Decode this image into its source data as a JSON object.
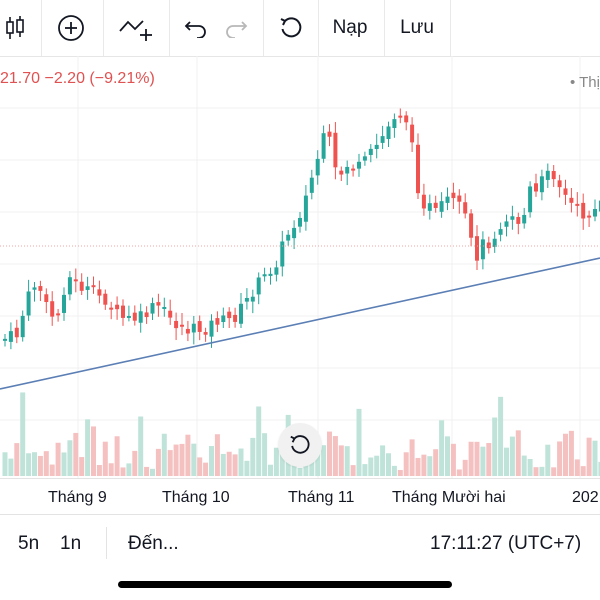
{
  "toolbar": {
    "candles_icon": "candlestick-icon",
    "add_icon": "plus-circle-icon",
    "indicator_icon": "indicator-add-icon",
    "undo_icon": "undo-icon",
    "redo_icon": "redo-icon",
    "refresh_icon": "refresh-icon",
    "load_label": "Nạp",
    "save_label": "Lưu"
  },
  "quote": {
    "price_text": "21.70 −2.20 (−9.21%)",
    "legend_text": "• Thị"
  },
  "colors": {
    "up": "#26a69a",
    "down": "#ef5350",
    "trendline": "#5b7fb5",
    "ref_line": "#f0a3a3"
  },
  "x_axis": {
    "labels": [
      "Tháng 9",
      "Tháng 10",
      "Tháng 11",
      "Tháng Mười hai",
      "202"
    ]
  },
  "bottom": {
    "range_5y": "5n",
    "range_1y": "1n",
    "goto_label": "Đến...",
    "clock": "17:11:27 (UTC+7)"
  }
}
